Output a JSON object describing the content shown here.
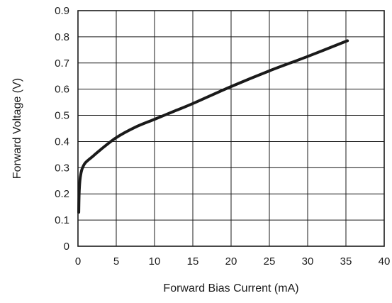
{
  "chart_data": {
    "type": "line",
    "xlabel": "Forward Bias Current (mA)",
    "ylabel": "Forward Voltage (V)",
    "xlim": [
      0,
      40
    ],
    "ylim": [
      0,
      0.9
    ],
    "xticks": [
      "0",
      "5",
      "10",
      "15",
      "20",
      "25",
      "30",
      "35",
      "40"
    ],
    "yticks": [
      "0",
      "0.1",
      "0.2",
      "0.3",
      "0.4",
      "0.5",
      "0.6",
      "0.7",
      "0.8",
      "0.9"
    ],
    "grid": true,
    "series": [
      {
        "color": "#1a1a1a",
        "x": [
          0.1,
          0.15,
          0.25,
          0.4,
          0.6,
          1,
          2,
          3,
          5,
          7.5,
          10,
          12.5,
          15,
          20,
          25,
          30,
          35.2
        ],
        "y": [
          0.13,
          0.2,
          0.25,
          0.28,
          0.3,
          0.32,
          0.345,
          0.37,
          0.415,
          0.455,
          0.485,
          0.515,
          0.545,
          0.61,
          0.67,
          0.725,
          0.785
        ]
      }
    ]
  }
}
